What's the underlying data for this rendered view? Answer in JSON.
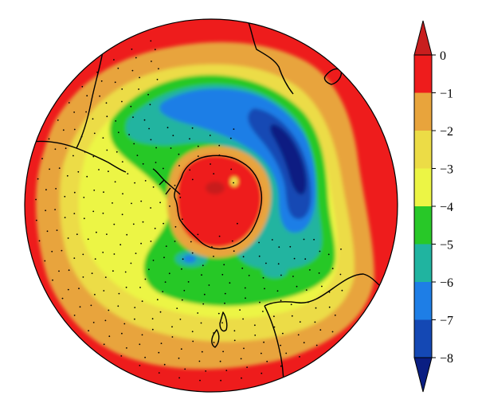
{
  "colorbar": {
    "ticks": [
      "0",
      "−1",
      "−2",
      "−3",
      "−4",
      "−5",
      "−6",
      "−7",
      "−8"
    ],
    "bins": [
      {
        "range": "above 0",
        "color": "#c81e1e"
      },
      {
        "range": "0 to -1",
        "color": "#ee1c1c"
      },
      {
        "range": "-1 to -2",
        "color": "#e8a43c"
      },
      {
        "range": "-2 to -3",
        "color": "#ecdc46"
      },
      {
        "range": "-3 to -4",
        "color": "#ecf545"
      },
      {
        "range": "-4 to -5",
        "color": "#28c828"
      },
      {
        "range": "-5 to -6",
        "color": "#20b4a0"
      },
      {
        "range": "-6 to -7",
        "color": "#1e7ee6"
      },
      {
        "range": "-7 to -8",
        "color": "#1448b4"
      },
      {
        "range": "below -8",
        "color": "#0a1e82"
      }
    ]
  },
  "map": {
    "projection": "south polar stereographic",
    "outer_color": "#ee1c1c",
    "coastline_color": "#000000",
    "stipple": true
  }
}
